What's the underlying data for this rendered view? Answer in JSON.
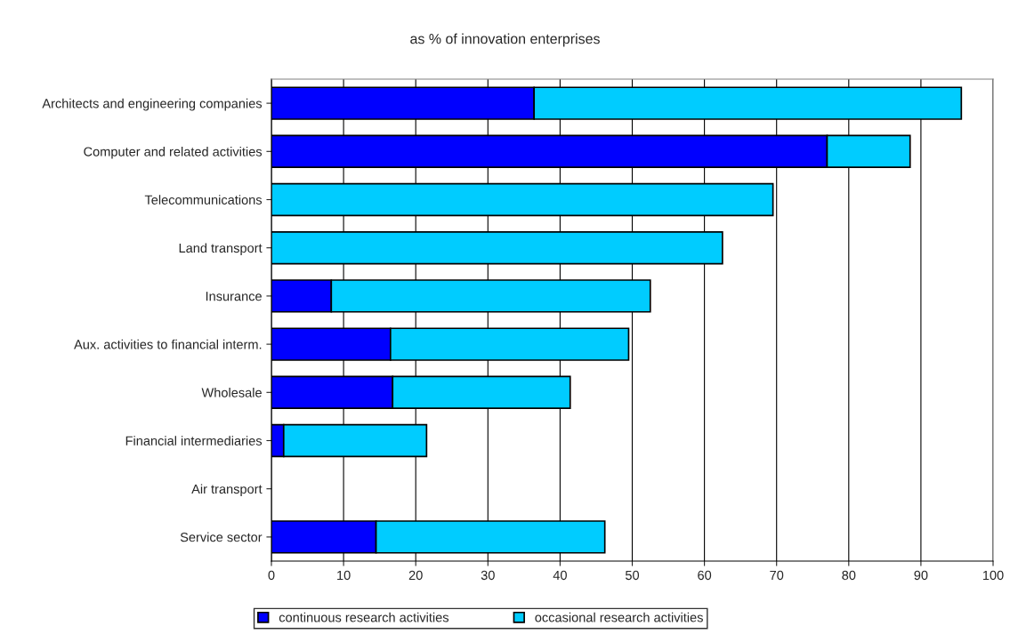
{
  "chart_data": {
    "type": "bar",
    "orientation": "horizontal",
    "stacked": true,
    "title": "as % of innovation enterprises",
    "categories": [
      "Architects and engineering companies",
      "Computer and related activities",
      "Telecommunications",
      "Land transport",
      "Insurance",
      "Aux. activities to financial interm.",
      "Wholesale",
      "Financial intermediaries",
      "Air transport",
      "Service sector"
    ],
    "series": [
      {
        "name": "continuous research activities",
        "color": "#0000ff",
        "values": [
          36.4,
          77.0,
          0,
          0,
          8.3,
          16.5,
          16.8,
          1.7,
          null,
          14.5
        ]
      },
      {
        "name": "occasional research activities",
        "color": "#00ccff",
        "values": [
          59.2,
          11.5,
          69.5,
          62.5,
          44.2,
          33.0,
          24.6,
          19.8,
          null,
          31.7
        ]
      }
    ],
    "xlim": [
      0,
      100
    ],
    "xticks": [
      0,
      10,
      20,
      30,
      40,
      50,
      60,
      70,
      80,
      90,
      100
    ],
    "grid": "x",
    "legend": "bottom"
  }
}
